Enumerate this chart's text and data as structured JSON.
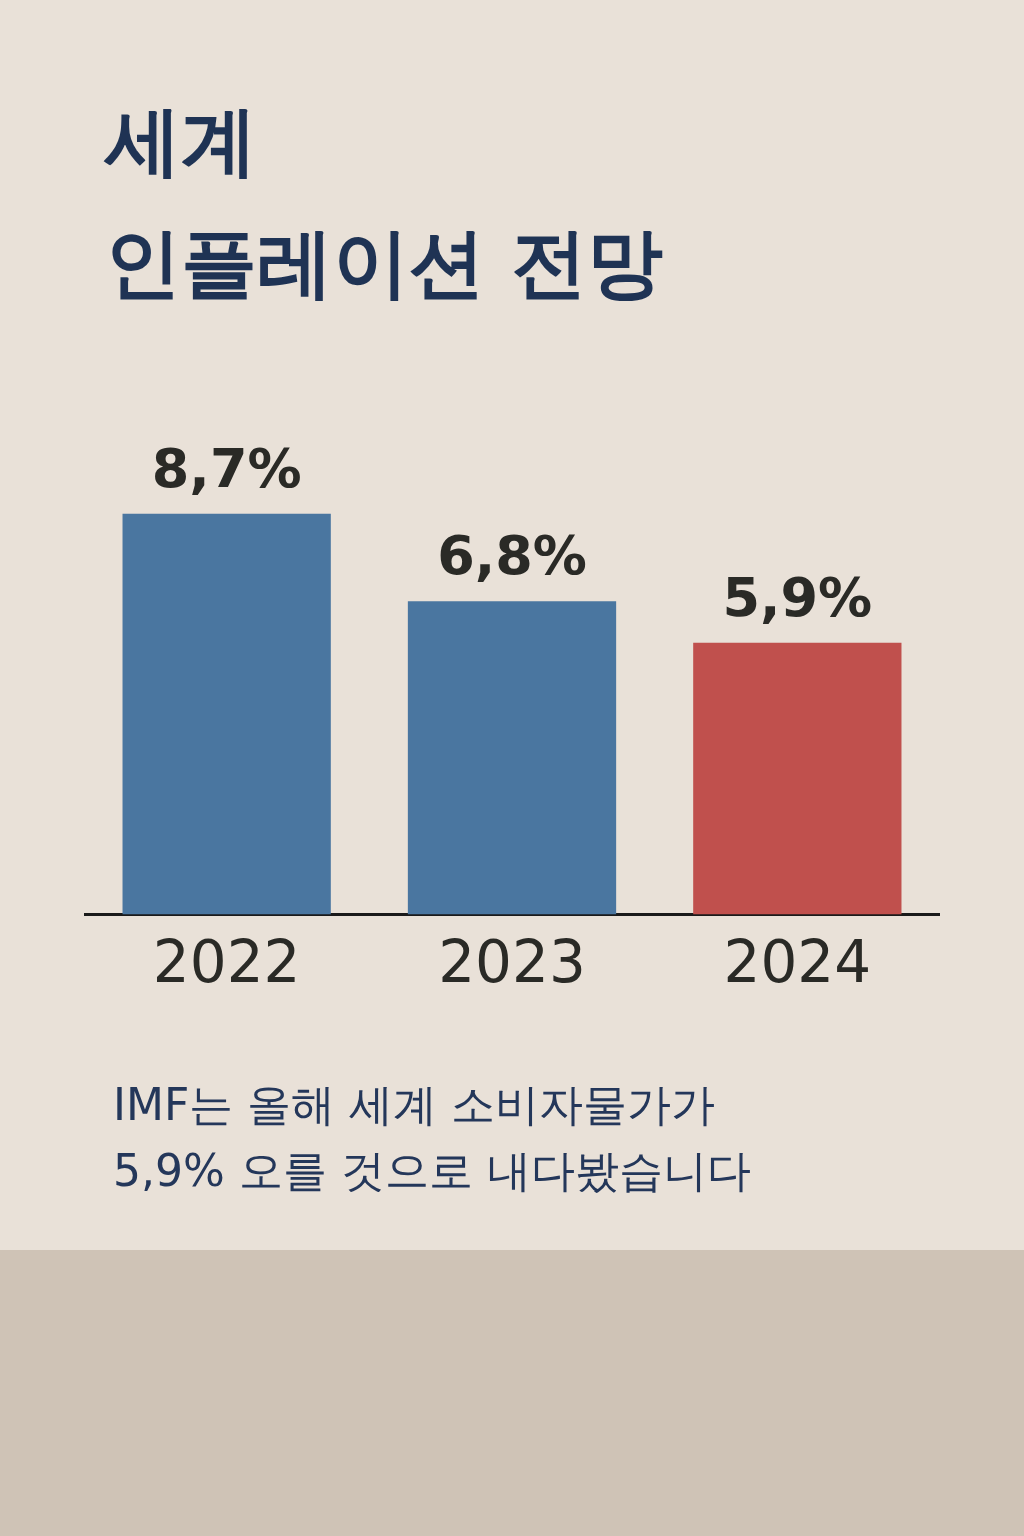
{
  "chart_data": {
    "type": "bar",
    "title": "세계\n인플레이션 전망",
    "categories": [
      "2022",
      "2023",
      "2024"
    ],
    "values": [
      8.7,
      6.8,
      5.9
    ],
    "value_labels": [
      "8,7%",
      "6,8%",
      "5,9%"
    ],
    "colors": [
      "#4a76a0",
      "#4a76a0",
      "#c0504d"
    ],
    "tick_labels": "x",
    "grid": false,
    "legend": false,
    "annotations": [
      "IMF는 올해 세계 소비자물가가\n5,9% 오를 것으로 내다봤습니다"
    ]
  }
}
